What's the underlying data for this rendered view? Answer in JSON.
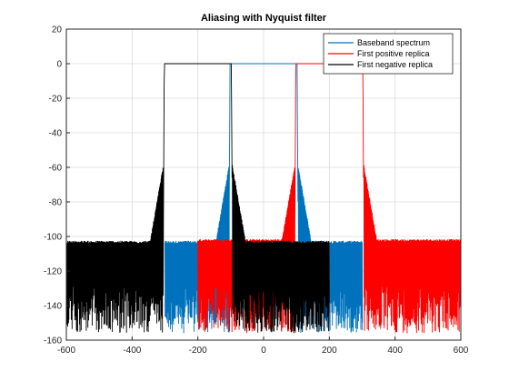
{
  "chart_data": {
    "type": "line",
    "title": "Aliasing with Nyquist filter",
    "xlabel": "",
    "ylabel": "",
    "xlim": [
      -600,
      600
    ],
    "ylim": [
      -160,
      20
    ],
    "xticks": [
      -600,
      -400,
      -200,
      0,
      200,
      400,
      600
    ],
    "yticks": [
      20,
      0,
      -20,
      -40,
      -60,
      -80,
      -100,
      -120,
      -140,
      -160
    ],
    "grid": true,
    "legend_position": "top-right",
    "series": [
      {
        "name": "Baseband spectrum",
        "color": "#0072BD",
        "passband": [
          -100,
          100
        ],
        "band_edges": [
          -105,
          105
        ],
        "floor_band": [
          -300,
          300
        ],
        "noise_top": -104
      },
      {
        "name": "First positive replica",
        "color": "#FF0000",
        "passband": [
          100,
          300
        ],
        "band_edges": [
          95,
          305
        ],
        "floor_band": [
          -200,
          600
        ],
        "noise_top": -103
      },
      {
        "name": "First negative replica",
        "color": "#000000",
        "passband": [
          -300,
          -100
        ],
        "band_edges": [
          -305,
          -95
        ],
        "floor_band": [
          -600,
          200
        ],
        "noise_top": -104
      }
    ]
  }
}
